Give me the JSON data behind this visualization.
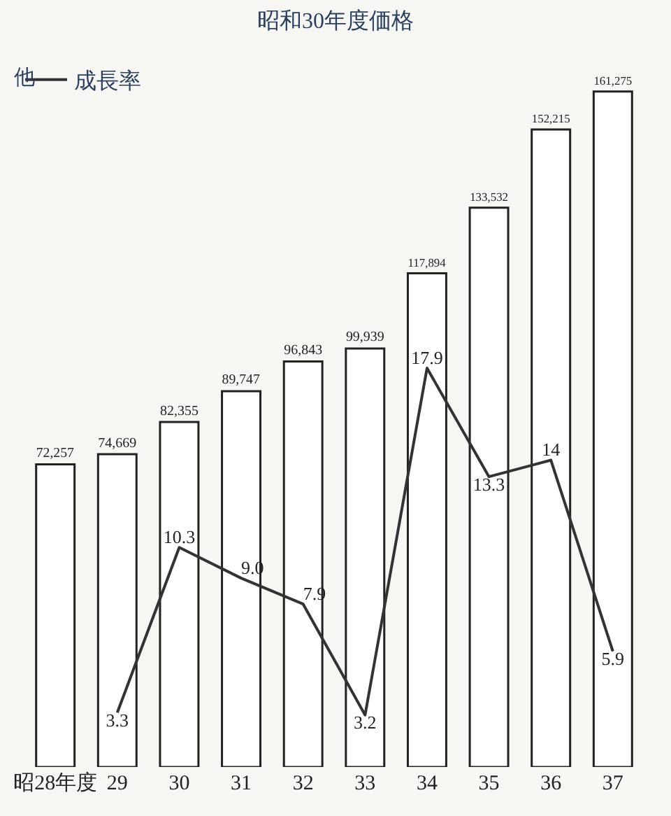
{
  "chart_data": {
    "type": "bar",
    "title": "昭和30年度価格",
    "annotations": [
      "他"
    ],
    "categories": [
      "昭28年度",
      "29",
      "30",
      "31",
      "32",
      "33",
      "34",
      "35",
      "36",
      "37"
    ],
    "series": [
      {
        "color": "#ffffff",
        "values": [
          72257,
          74669,
          82355,
          89747,
          96843,
          99939,
          117894,
          133532,
          152215,
          161275
        ],
        "value_labels": [
          "72,257",
          "74,669",
          "82,355",
          "89,747",
          "96,843",
          "99,939",
          "117,894",
          "133,532",
          "152,215",
          "161,275"
        ]
      },
      {
        "type": "line",
        "name": "成長率",
        "axis": "y2",
        "color": "#333333",
        "values": [
          null,
          3.3,
          10.3,
          9.0,
          7.9,
          3.2,
          17.9,
          13.3,
          14,
          5.9
        ],
        "value_labels": [
          null,
          "3.3",
          "10.3",
          "9.0",
          "7.9",
          "3.2",
          "17.9",
          "13.3",
          "14",
          "5.9"
        ]
      }
    ],
    "legend": "top left",
    "grid": false,
    "marker": "none",
    "line_style": "solid"
  }
}
